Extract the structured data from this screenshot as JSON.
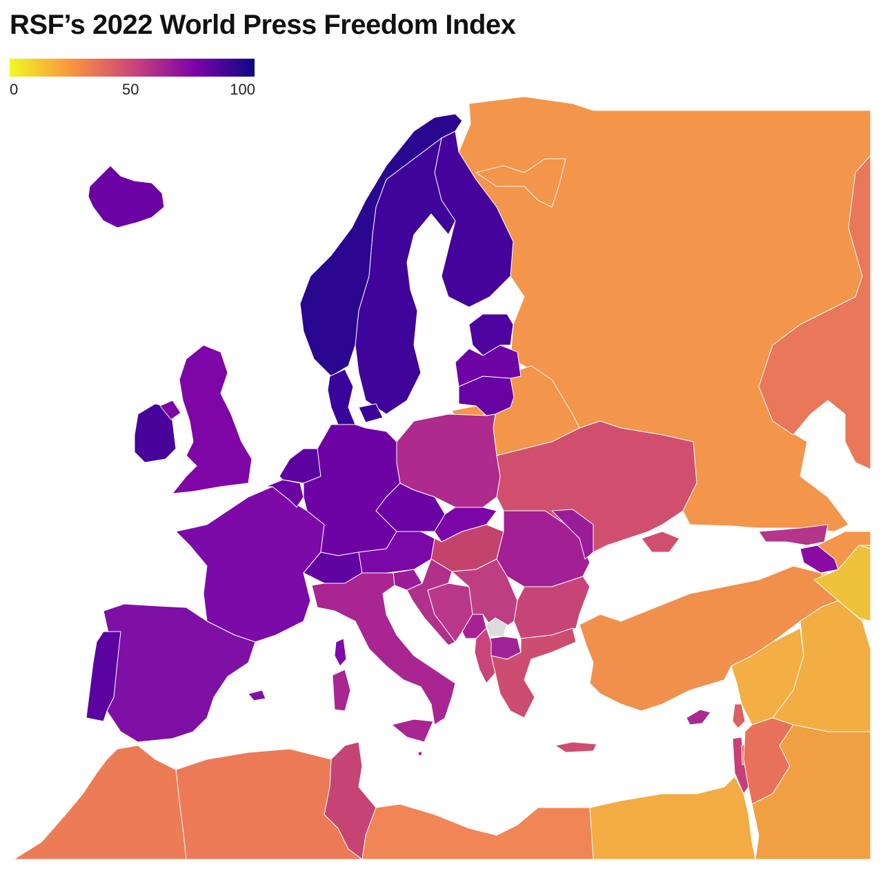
{
  "title": "RSF’s 2022 World Press Freedom Index",
  "legend": {
    "min_label": "0",
    "mid_label": "50",
    "max_label": "100",
    "gradient": [
      "#f0f921",
      "#f89540",
      "#cc4778",
      "#7e03a8",
      "#0d0887"
    ]
  },
  "colors": {
    "no_data": "#dddddd",
    "border": "#ffffff",
    "sea": "#ffffff"
  },
  "regions": [
    {
      "id": "russia",
      "name": "Russia",
      "color": "#f3954a"
    },
    {
      "id": "kazakhstan",
      "name": "Kazakhstan",
      "color": "#e9775a"
    },
    {
      "id": "norway",
      "name": "Norway",
      "color": "#2b068f"
    },
    {
      "id": "sweden",
      "name": "Sweden",
      "color": "#3f049a"
    },
    {
      "id": "finland",
      "name": "Finland",
      "color": "#45039b"
    },
    {
      "id": "denmark",
      "name": "Denmark",
      "color": "#3a049a"
    },
    {
      "id": "iceland",
      "name": "Iceland",
      "color": "#6b02a4"
    },
    {
      "id": "estonia",
      "name": "Estonia",
      "color": "#4d039d"
    },
    {
      "id": "latvia",
      "name": "Latvia",
      "color": "#6e02a5"
    },
    {
      "id": "lithuania",
      "name": "Lithuania",
      "color": "#6702a3"
    },
    {
      "id": "ireland",
      "name": "Ireland",
      "color": "#48039b"
    },
    {
      "id": "united-kingdom",
      "name": "United Kingdom",
      "color": "#7e06a7"
    },
    {
      "id": "netherlands",
      "name": "Netherlands",
      "color": "#5a03a0"
    },
    {
      "id": "belgium",
      "name": "Belgium",
      "color": "#6a02a4"
    },
    {
      "id": "germany",
      "name": "Germany",
      "color": "#6d02a4"
    },
    {
      "id": "france",
      "name": "France",
      "color": "#7b0aa8"
    },
    {
      "id": "spain",
      "name": "Spain",
      "color": "#7e10a6"
    },
    {
      "id": "portugal",
      "name": "Portugal",
      "color": "#5a03a0"
    },
    {
      "id": "switzerland",
      "name": "Switzerland",
      "color": "#6003a1"
    },
    {
      "id": "austria",
      "name": "Austria",
      "color": "#7a07a7"
    },
    {
      "id": "czechia",
      "name": "Czechia",
      "color": "#6a02a4"
    },
    {
      "id": "slovakia",
      "name": "Slovakia",
      "color": "#7a06a7"
    },
    {
      "id": "poland",
      "name": "Poland",
      "color": "#ae2a8c"
    },
    {
      "id": "italy",
      "name": "Italy",
      "color": "#a82592"
    },
    {
      "id": "slovenia",
      "name": "Slovenia",
      "color": "#9c1c98"
    },
    {
      "id": "croatia",
      "name": "Croatia",
      "color": "#b0308c"
    },
    {
      "id": "bosnia",
      "name": "Bosnia and Herzegovina",
      "color": "#b8378a"
    },
    {
      "id": "serbia",
      "name": "Serbia",
      "color": "#bd3e83"
    },
    {
      "id": "montenegro",
      "name": "Montenegro",
      "color": "#a82193"
    },
    {
      "id": "kosovo",
      "name": "Kosovo",
      "color": "#dddddd"
    },
    {
      "id": "albania",
      "name": "Albania",
      "color": "#c8447b"
    },
    {
      "id": "north-macedonia",
      "name": "North Macedonia",
      "color": "#a02396"
    },
    {
      "id": "greece",
      "name": "Greece",
      "color": "#cd4d70"
    },
    {
      "id": "bulgaria",
      "name": "Bulgaria",
      "color": "#c64576"
    },
    {
      "id": "romania",
      "name": "Romania",
      "color": "#a21f94"
    },
    {
      "id": "moldova",
      "name": "Moldova",
      "color": "#9a1d98"
    },
    {
      "id": "hungary",
      "name": "Hungary",
      "color": "#c4436d"
    },
    {
      "id": "ukraine",
      "name": "Ukraine",
      "color": "#d14f6e"
    },
    {
      "id": "belarus",
      "name": "Belarus",
      "color": "#f3954a"
    },
    {
      "id": "kaliningrad",
      "name": "Kaliningrad (Russia)",
      "color": "#f3954a"
    },
    {
      "id": "turkey",
      "name": "Türkiye",
      "color": "#f0904c"
    },
    {
      "id": "georgia",
      "name": "Georgia",
      "color": "#b5358a"
    },
    {
      "id": "armenia",
      "name": "Armenia",
      "color": "#8b0aa3"
    },
    {
      "id": "azerbaijan",
      "name": "Azerbaijan",
      "color": "#f3954a"
    },
    {
      "id": "iran",
      "name": "Iran",
      "color": "#f0c13a"
    },
    {
      "id": "syria",
      "name": "Syria",
      "color": "#f3ae44"
    },
    {
      "id": "iraq",
      "name": "Iraq",
      "color": "#f2ae43"
    },
    {
      "id": "lebanon",
      "name": "Lebanon",
      "color": "#dd5f60"
    },
    {
      "id": "israel",
      "name": "Israel",
      "color": "#c83e78"
    },
    {
      "id": "palestine",
      "name": "Palestine",
      "color": "#e46a5a"
    },
    {
      "id": "jordan",
      "name": "Jordan",
      "color": "#e87159"
    },
    {
      "id": "saudi-arabia",
      "name": "Saudi Arabia",
      "color": "#f0a043"
    },
    {
      "id": "egypt",
      "name": "Egypt",
      "color": "#f3ac43"
    },
    {
      "id": "libya",
      "name": "Libya",
      "color": "#f08555"
    },
    {
      "id": "tunisia",
      "name": "Tunisia",
      "color": "#c54474"
    },
    {
      "id": "algeria",
      "name": "Algeria",
      "color": "#ec7a56"
    },
    {
      "id": "morocco",
      "name": "Morocco",
      "color": "#ec7c55"
    },
    {
      "id": "cyprus",
      "name": "Cyprus",
      "color": "#aa2a90"
    },
    {
      "id": "malta",
      "name": "Malta",
      "color": "#b0308c"
    }
  ]
}
